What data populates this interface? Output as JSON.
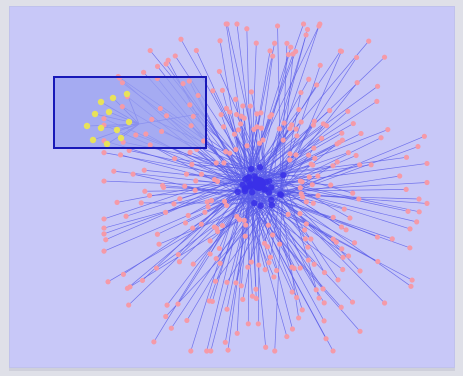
{
  "graph": {
    "selection_active": true,
    "colors": {
      "background": "#c8c8f8",
      "node": "#f59aa8",
      "selected_node": "#e8e25a",
      "edge": "#5a5ce8",
      "hub": "#3a30e8",
      "selection_fill": "#9aa2f0",
      "selection_border": "#1818b8"
    },
    "icons": {
      "node": "node-dot",
      "hub": "hub-node",
      "selection": "selection-rectangle"
    }
  }
}
